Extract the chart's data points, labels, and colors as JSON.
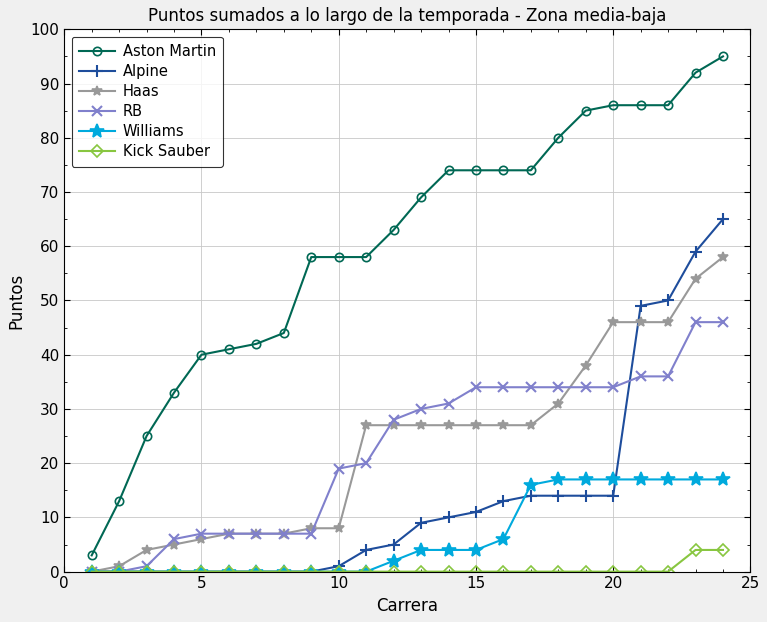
{
  "title": "Puntos sumados a lo largo de la temporada - Zona media-baja",
  "xlabel": "Carrera",
  "ylabel": "Puntos",
  "xlim": [
    0,
    25
  ],
  "ylim": [
    0,
    100
  ],
  "xticks": [
    0,
    5,
    10,
    15,
    20,
    25
  ],
  "yticks": [
    0,
    10,
    20,
    30,
    40,
    50,
    60,
    70,
    80,
    90,
    100
  ],
  "teams": {
    "Aston Martin": {
      "color": "#006854",
      "marker": "o",
      "markersize": 6,
      "markerfacecolor": "none",
      "linewidth": 1.5,
      "points": [
        3,
        13,
        25,
        33,
        40,
        41,
        42,
        44,
        58,
        58,
        58,
        63,
        69,
        74,
        74,
        74,
        74,
        80,
        85,
        86,
        86,
        86,
        92,
        95
      ]
    },
    "Alpine": {
      "color": "#1E4D9C",
      "marker": "+",
      "markersize": 8,
      "markerfacecolor": "#1E4D9C",
      "linewidth": 1.5,
      "points": [
        0,
        0,
        0,
        0,
        0,
        0,
        0,
        0,
        0,
        1,
        4,
        5,
        9,
        10,
        11,
        13,
        14,
        14,
        14,
        14,
        49,
        50,
        59,
        65
      ]
    },
    "Haas": {
      "color": "#999999",
      "marker": "*",
      "markersize": 7,
      "markerfacecolor": "#999999",
      "linewidth": 1.5,
      "points": [
        0,
        1,
        4,
        5,
        6,
        7,
        7,
        7,
        8,
        8,
        27,
        27,
        27,
        27,
        27,
        27,
        27,
        31,
        38,
        46,
        46,
        46,
        54,
        58
      ]
    },
    "RB": {
      "color": "#8080CC",
      "marker": "x",
      "markersize": 7,
      "markerfacecolor": "#8080CC",
      "linewidth": 1.5,
      "points": [
        0,
        0,
        1,
        6,
        7,
        7,
        7,
        7,
        7,
        19,
        20,
        28,
        30,
        31,
        34,
        34,
        34,
        34,
        34,
        34,
        36,
        36,
        46,
        46
      ]
    },
    "Williams": {
      "color": "#00AADD",
      "marker": "*",
      "markersize": 10,
      "markerfacecolor": "#00AADD",
      "linewidth": 1.5,
      "points": [
        0,
        0,
        0,
        0,
        0,
        0,
        0,
        0,
        0,
        0,
        0,
        2,
        4,
        4,
        4,
        6,
        16,
        17,
        17,
        17,
        17,
        17,
        17,
        17
      ]
    },
    "Kick Sauber": {
      "color": "#88C640",
      "marker": "D",
      "markersize": 6,
      "markerfacecolor": "none",
      "linewidth": 1.5,
      "points": [
        0,
        0,
        0,
        0,
        0,
        0,
        0,
        0,
        0,
        0,
        0,
        0,
        0,
        0,
        0,
        0,
        0,
        0,
        0,
        0,
        0,
        0,
        4,
        4
      ]
    }
  }
}
